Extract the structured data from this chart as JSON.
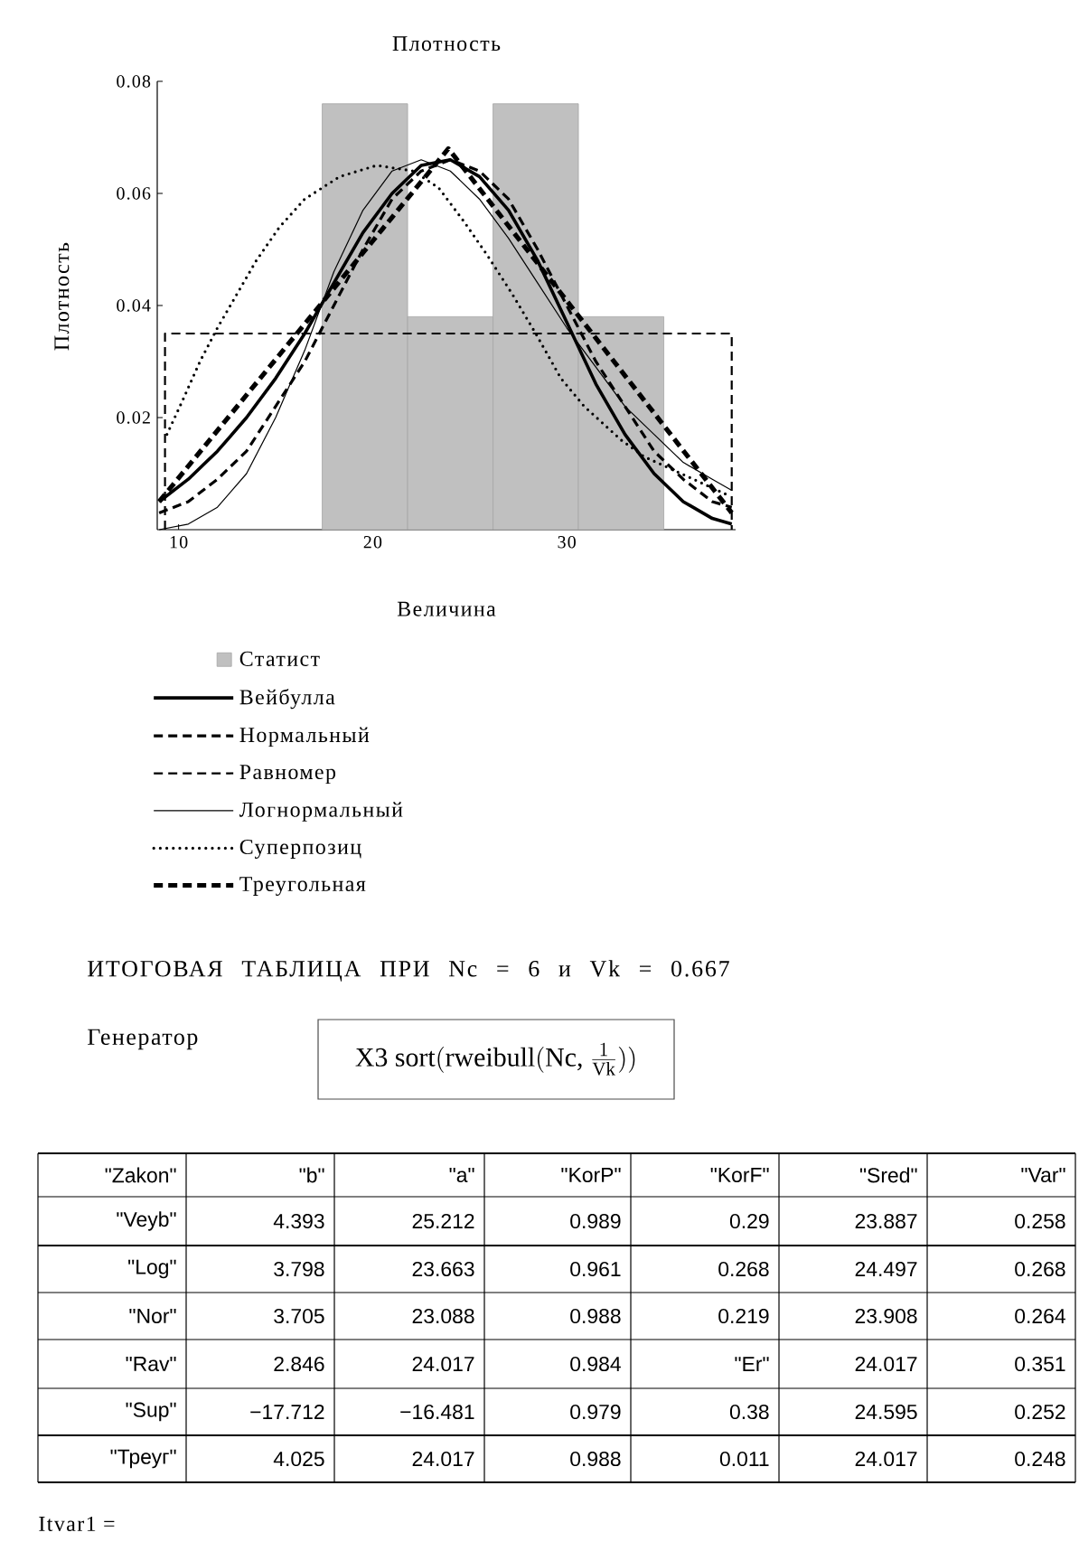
{
  "chart_data": [
    {
      "type": "line",
      "title": "Плотность",
      "xlabel": "Величина",
      "ylabel": "Плотность",
      "xlim": [
        8.9,
        38.7
      ],
      "ylim": [
        0,
        0.08
      ],
      "xticks": [
        10,
        20,
        30
      ],
      "yticks": [
        0.02,
        0.04,
        0.06,
        0.08
      ],
      "legend": "bottom",
      "series": [
        {
          "type": "histogram",
          "name": "Статист",
          "color": "#c0c0c0",
          "bins": [
            17.4,
            21.8,
            26.2,
            30.6,
            35.0
          ],
          "values": [
            0.076,
            0.038,
            0.076,
            0.038
          ]
        },
        {
          "name": "Вейбулла",
          "color": "#000000",
          "line_style": "solid",
          "x": [
            9,
            10.5,
            12,
            13.5,
            15,
            16.5,
            18,
            19.5,
            21,
            22.5,
            24,
            25.5,
            27,
            28.5,
            30,
            31.5,
            33,
            34.5,
            36,
            37.5,
            38.5
          ],
          "values": [
            0.005,
            0.009,
            0.014,
            0.02,
            0.027,
            0.035,
            0.044,
            0.053,
            0.06,
            0.065,
            0.066,
            0.063,
            0.057,
            0.048,
            0.037,
            0.026,
            0.017,
            0.01,
            0.005,
            0.002,
            0.001
          ]
        },
        {
          "name": "Нормальный",
          "color": "#000000",
          "line_style": "dashed",
          "x": [
            9,
            10.5,
            12,
            13.5,
            15,
            16.5,
            18,
            19.5,
            21,
            22.5,
            24,
            25.5,
            27,
            28.5,
            30,
            31.5,
            33,
            34.5,
            36,
            37.5,
            38.5
          ],
          "values": [
            0.003,
            0.005,
            0.009,
            0.014,
            0.022,
            0.03,
            0.04,
            0.05,
            0.059,
            0.064,
            0.066,
            0.064,
            0.059,
            0.05,
            0.04,
            0.03,
            0.022,
            0.014,
            0.009,
            0.005,
            0.004
          ]
        },
        {
          "name": "Равномер",
          "color": "#000000",
          "line_style": "dashed",
          "x": [
            9.3,
            9.3,
            38.5,
            38.5
          ],
          "values": [
            0,
            0.035,
            0.035,
            0
          ]
        },
        {
          "name": "Логнормальный",
          "color": "#000000",
          "line_style": "solid",
          "x": [
            9,
            10.5,
            12,
            13.5,
            15,
            16.5,
            18,
            19.5,
            21,
            22.5,
            24,
            25.5,
            27,
            28.5,
            30,
            31.5,
            33,
            34.5,
            36,
            37.5,
            38.5
          ],
          "values": [
            0.0,
            0.001,
            0.004,
            0.01,
            0.02,
            0.032,
            0.046,
            0.057,
            0.064,
            0.066,
            0.064,
            0.059,
            0.052,
            0.044,
            0.036,
            0.029,
            0.022,
            0.017,
            0.012,
            0.009,
            0.007
          ]
        },
        {
          "name": "Суперпозиц",
          "color": "#000000",
          "line_style": "dotted",
          "x": [
            9.4,
            10.2,
            11.1,
            12,
            13,
            14,
            15.2,
            16.5,
            18.3,
            20.2,
            22.1,
            23.4,
            24.7,
            25.9,
            27.2,
            28.4,
            29.7,
            30.9,
            32.8,
            34,
            35.9,
            38.4
          ],
          "values": [
            0.017,
            0.023,
            0.03,
            0.036,
            0.042,
            0.048,
            0.054,
            0.059,
            0.063,
            0.065,
            0.064,
            0.061,
            0.055,
            0.049,
            0.042,
            0.035,
            0.027,
            0.022,
            0.016,
            0.013,
            0.01,
            0.006
          ]
        },
        {
          "name": "Треугольная",
          "color": "#000000",
          "line_style": "dashed",
          "x": [
            9,
            23.9,
            38.5
          ],
          "values": [
            0.005,
            0.068,
            0.003
          ]
        }
      ]
    },
    {
      "type": "other",
      "title": "ИТОГОВАЯ ТАБЛИЦА  ПРИ  Nc = 6 и  Vk = 0.667",
      "annotations": [
        "Генератор",
        "\\mathrm{X3}\\ \\mathrm{sort}(\\mathrm{rweibull}(\\mathrm{Nc}\\mbox{, }\\frac{1}{\\mathrm{Vk}}))",
        "\"Zakon\"",
        "\"b\"",
        "\"a\"",
        "\"KorP\"",
        "\"KorF\"",
        "\"Sred\"",
        "\"Var\"",
        "\"Veyb\"",
        "4.393",
        "25.212",
        "0.989",
        "0.29",
        "23.887",
        "0.258",
        "\"Log\"",
        "3.798",
        "23.663",
        "0.961",
        "0.268",
        "24.497",
        "0.268",
        "\"Nor\"",
        "3.705",
        "23.088",
        "0.988",
        "0.219",
        "23.908",
        "0.264",
        "\"Rav\"",
        "2.846",
        "24.017",
        "0.984",
        "\"Er\"",
        "24.017",
        "0.351",
        "\"Sup\"",
        "−17.712",
        "−16.481",
        "0.979",
        "0.38",
        "24.595",
        "0.252",
        "\"Треуг\"",
        "4.025",
        "24.017",
        "0.988",
        "0.011",
        "24.017",
        "0.248",
        "Itvar1 ="
      ]
    }
  ]
}
